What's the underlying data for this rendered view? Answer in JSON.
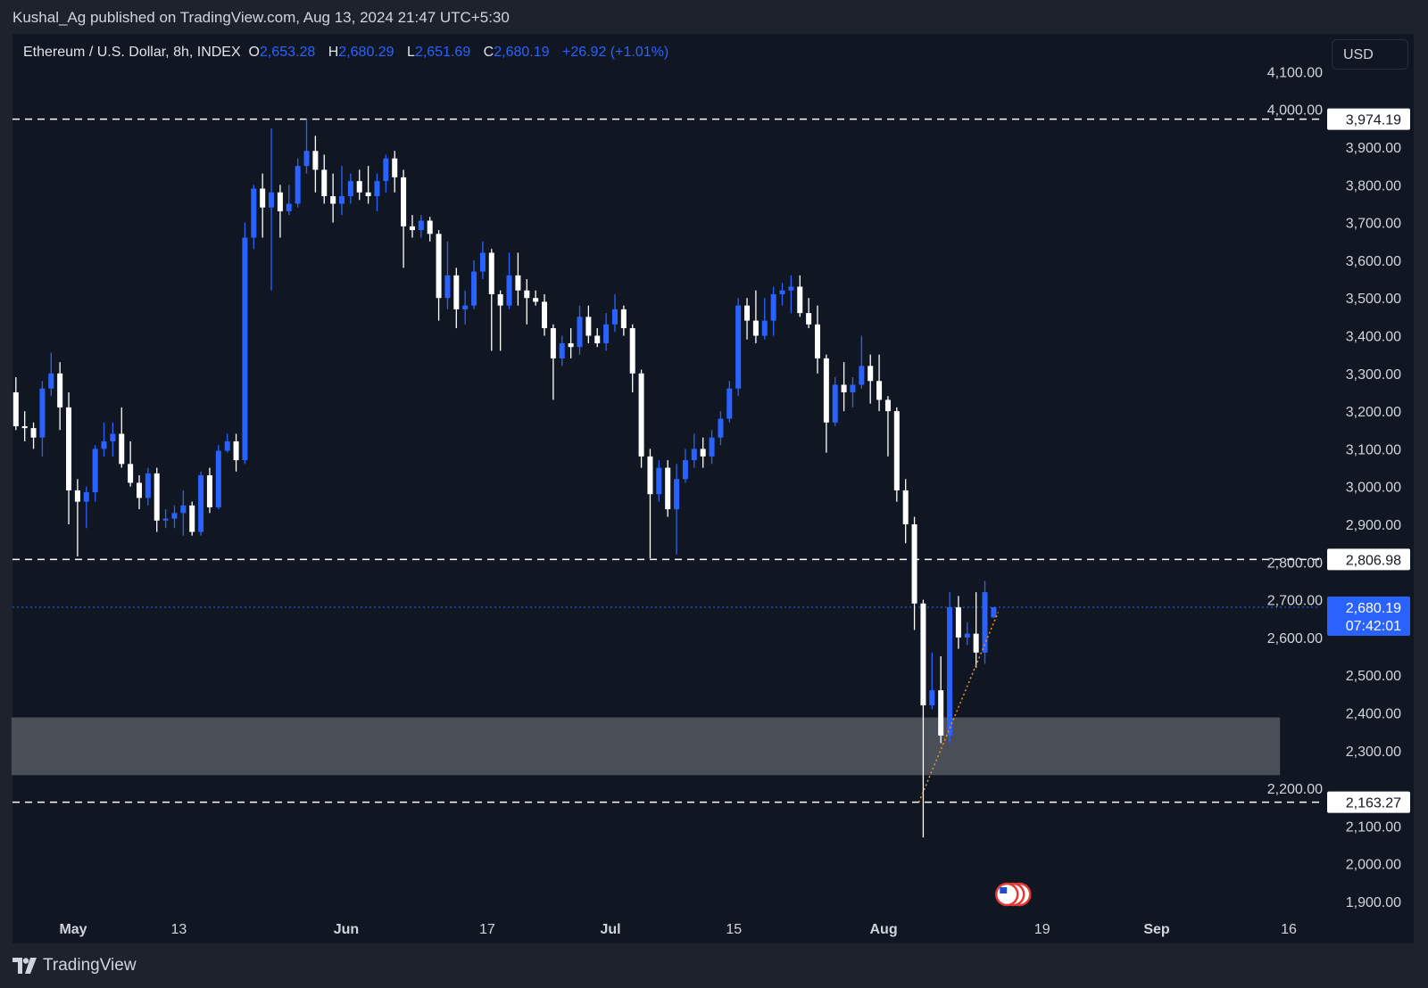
{
  "publisher_line": "Kushal_Ag published on TradingView.com, Aug 13, 2024 21:47 UTC+5:30",
  "legend": {
    "symbol": "Ethereum / U.S. Dollar, 8h, INDEX",
    "open_label": "O",
    "open": "2,653.28",
    "high_label": "H",
    "high": "2,680.29",
    "low_label": "L",
    "low": "2,651.69",
    "close_label": "C",
    "close": "2,680.19",
    "change": "+26.92 (+1.01%)"
  },
  "currency_button": "USD",
  "footer": {
    "brand": "TradingView",
    "logo_icon": "tradingview-logo-icon"
  },
  "colors": {
    "up": "#2962ff",
    "down": "#ffffff",
    "background": "#111722",
    "zone": "#4a4e57",
    "trendline": "#f7931a",
    "last_price": "#2962ff"
  },
  "chart_data": {
    "type": "candlestick",
    "symbol": "ETHUSD",
    "interval": "8h",
    "y_axis_ticks": [
      "1,900.00",
      "2,000.00",
      "2,100.00",
      "2,200.00",
      "2,300.00",
      "2,400.00",
      "2,500.00",
      "2,600.00",
      "2,700.00",
      "2,800.00",
      "2,900.00",
      "3,000.00",
      "3,100.00",
      "3,200.00",
      "3,300.00",
      "3,400.00",
      "3,500.00",
      "3,600.00",
      "3,700.00",
      "3,800.00",
      "3,900.00",
      "4,000.00",
      "4,100.00"
    ],
    "y_tick_values": [
      1900,
      2000,
      2100,
      2200,
      2300,
      2400,
      2500,
      2600,
      2700,
      2800,
      2900,
      3000,
      3100,
      3200,
      3300,
      3400,
      3500,
      3600,
      3700,
      3800,
      3900,
      4000,
      4100
    ],
    "x_axis_ticks": [
      {
        "label": "May",
        "date": "2024-05-01"
      },
      {
        "label": "13",
        "date": "2024-05-13"
      },
      {
        "label": "Jun",
        "date": "2024-06-01"
      },
      {
        "label": "17",
        "date": "2024-06-17"
      },
      {
        "label": "Jul",
        "date": "2024-07-01"
      },
      {
        "label": "15",
        "date": "2024-07-15"
      },
      {
        "label": "Aug",
        "date": "2024-08-01"
      },
      {
        "label": "19",
        "date": "2024-08-19"
      },
      {
        "label": "Sep",
        "date": "2024-09-01"
      },
      {
        "label": "16",
        "date": "2024-09-16"
      }
    ],
    "horizontal_levels": [
      {
        "value": 3974.19,
        "label": "3,974.19"
      },
      {
        "value": 2806.98,
        "label": "2,806.98"
      },
      {
        "value": 2163.27,
        "label": "2,163.27"
      }
    ],
    "zone": {
      "low": 2235,
      "high": 2388,
      "from": "2024-04-24",
      "to": "2024-09-15"
    },
    "trendline": {
      "from": {
        "date": "2024-08-05",
        "price": 2163
      },
      "to": {
        "date": "2024-08-14",
        "price": 2667
      }
    },
    "last_price": {
      "value": 2680.19,
      "label": "2,680.19",
      "countdown": "07:42:01"
    },
    "events": {
      "date": "2024-08-15",
      "icon": "us-flag-economic-event-icon",
      "count": 3
    },
    "candles_columns": [
      "date",
      "open",
      "high",
      "low",
      "close"
    ],
    "candles": [
      [
        "2024-04-24",
        3250,
        3290,
        3150,
        3160
      ],
      [
        "2024-04-25",
        3160,
        3200,
        3120,
        3155
      ],
      [
        "2024-04-26",
        3155,
        3170,
        3100,
        3130
      ],
      [
        "2024-04-27",
        3130,
        3280,
        3080,
        3260
      ],
      [
        "2024-04-28",
        3260,
        3355,
        3240,
        3300
      ],
      [
        "2024-04-29",
        3300,
        3330,
        3150,
        3210
      ],
      [
        "2024-04-30",
        3210,
        3250,
        2900,
        2990
      ],
      [
        "2024-05-01",
        2990,
        3020,
        2815,
        2960
      ],
      [
        "2024-05-02",
        2960,
        3000,
        2890,
        2985
      ],
      [
        "2024-05-03",
        2985,
        3110,
        2960,
        3100
      ],
      [
        "2024-05-04",
        3100,
        3170,
        3080,
        3120
      ],
      [
        "2024-05-05",
        3120,
        3170,
        3080,
        3140
      ],
      [
        "2024-05-06",
        3140,
        3210,
        3050,
        3060
      ],
      [
        "2024-05-07",
        3060,
        3120,
        3000,
        3010
      ],
      [
        "2024-05-08",
        3010,
        3030,
        2940,
        2970
      ],
      [
        "2024-05-09",
        2970,
        3050,
        2950,
        3035
      ],
      [
        "2024-05-10",
        3035,
        3050,
        2880,
        2910
      ],
      [
        "2024-05-11",
        2910,
        2940,
        2890,
        2915
      ],
      [
        "2024-05-12",
        2915,
        2950,
        2890,
        2930
      ],
      [
        "2024-05-13",
        2930,
        2990,
        2870,
        2950
      ],
      [
        "2024-05-14",
        2950,
        2960,
        2870,
        2880
      ],
      [
        "2024-05-15",
        2880,
        3040,
        2870,
        3030
      ],
      [
        "2024-05-16",
        3030,
        3050,
        2930,
        2945
      ],
      [
        "2024-05-17",
        2945,
        3110,
        2940,
        3095
      ],
      [
        "2024-05-18",
        3095,
        3140,
        3090,
        3120
      ],
      [
        "2024-05-19",
        3120,
        3140,
        3040,
        3070
      ],
      [
        "2024-05-20",
        3070,
        3700,
        3060,
        3660
      ],
      [
        "2024-05-21",
        3660,
        3800,
        3630,
        3790
      ],
      [
        "2024-05-22",
        3790,
        3830,
        3660,
        3740
      ],
      [
        "2024-05-23",
        3740,
        3950,
        3520,
        3780
      ],
      [
        "2024-05-24",
        3780,
        3800,
        3660,
        3730
      ],
      [
        "2024-05-25",
        3730,
        3800,
        3720,
        3750
      ],
      [
        "2024-05-26",
        3750,
        3870,
        3740,
        3850
      ],
      [
        "2024-05-27",
        3850,
        3975,
        3830,
        3890
      ],
      [
        "2024-05-28",
        3890,
        3930,
        3780,
        3840
      ],
      [
        "2024-05-29",
        3840,
        3880,
        3750,
        3770
      ],
      [
        "2024-05-30",
        3770,
        3830,
        3700,
        3750
      ],
      [
        "2024-05-31",
        3750,
        3850,
        3720,
        3770
      ],
      [
        "2024-06-01",
        3770,
        3830,
        3750,
        3810
      ],
      [
        "2024-06-02",
        3810,
        3840,
        3760,
        3780
      ],
      [
        "2024-06-03",
        3780,
        3850,
        3750,
        3770
      ],
      [
        "2024-06-04",
        3770,
        3830,
        3730,
        3810
      ],
      [
        "2024-06-05",
        3810,
        3880,
        3780,
        3870
      ],
      [
        "2024-06-06",
        3870,
        3890,
        3780,
        3820
      ],
      [
        "2024-06-07",
        3820,
        3840,
        3580,
        3690
      ],
      [
        "2024-06-08",
        3690,
        3720,
        3660,
        3680
      ],
      [
        "2024-06-09",
        3680,
        3720,
        3660,
        3705
      ],
      [
        "2024-06-10",
        3705,
        3715,
        3650,
        3670
      ],
      [
        "2024-06-11",
        3670,
        3680,
        3440,
        3500
      ],
      [
        "2024-06-12",
        3500,
        3650,
        3470,
        3560
      ],
      [
        "2024-06-13",
        3560,
        3580,
        3420,
        3470
      ],
      [
        "2024-06-14",
        3470,
        3520,
        3430,
        3480
      ],
      [
        "2024-06-15",
        3480,
        3600,
        3470,
        3570
      ],
      [
        "2024-06-16",
        3570,
        3650,
        3550,
        3620
      ],
      [
        "2024-06-17",
        3620,
        3630,
        3360,
        3510
      ],
      [
        "2024-06-18",
        3510,
        3520,
        3360,
        3480
      ],
      [
        "2024-06-19",
        3480,
        3620,
        3470,
        3560
      ],
      [
        "2024-06-20",
        3560,
        3620,
        3480,
        3520
      ],
      [
        "2024-06-21",
        3520,
        3550,
        3430,
        3500
      ],
      [
        "2024-06-22",
        3500,
        3520,
        3480,
        3490
      ],
      [
        "2024-06-23",
        3490,
        3510,
        3400,
        3420
      ],
      [
        "2024-06-24",
        3420,
        3430,
        3230,
        3340
      ],
      [
        "2024-06-25",
        3340,
        3400,
        3320,
        3380
      ],
      [
        "2024-06-26",
        3380,
        3420,
        3340,
        3370
      ],
      [
        "2024-06-27",
        3370,
        3480,
        3350,
        3450
      ],
      [
        "2024-06-28",
        3450,
        3480,
        3380,
        3400
      ],
      [
        "2024-06-29",
        3400,
        3420,
        3370,
        3380
      ],
      [
        "2024-06-30",
        3380,
        3460,
        3360,
        3430
      ],
      [
        "2024-07-01",
        3430,
        3510,
        3410,
        3470
      ],
      [
        "2024-07-02",
        3470,
        3480,
        3400,
        3420
      ],
      [
        "2024-07-03",
        3420,
        3430,
        3250,
        3300
      ],
      [
        "2024-07-04",
        3300,
        3310,
        3050,
        3080
      ],
      [
        "2024-07-05",
        3080,
        3100,
        2810,
        2980
      ],
      [
        "2024-07-06",
        2980,
        3070,
        2960,
        3050
      ],
      [
        "2024-07-07",
        3050,
        3070,
        2920,
        2940
      ],
      [
        "2024-07-08",
        2940,
        3060,
        2820,
        3020
      ],
      [
        "2024-07-09",
        3020,
        3100,
        3010,
        3070
      ],
      [
        "2024-07-10",
        3070,
        3140,
        3050,
        3100
      ],
      [
        "2024-07-11",
        3100,
        3130,
        3050,
        3080
      ],
      [
        "2024-07-12",
        3080,
        3150,
        3060,
        3130
      ],
      [
        "2024-07-13",
        3130,
        3200,
        3110,
        3180
      ],
      [
        "2024-07-14",
        3180,
        3280,
        3170,
        3260
      ],
      [
        "2024-07-15",
        3260,
        3500,
        3240,
        3480
      ],
      [
        "2024-07-16",
        3480,
        3500,
        3390,
        3440
      ],
      [
        "2024-07-17",
        3440,
        3520,
        3380,
        3400
      ],
      [
        "2024-07-18",
        3400,
        3500,
        3390,
        3440
      ],
      [
        "2024-07-19",
        3440,
        3530,
        3400,
        3510
      ],
      [
        "2024-07-20",
        3510,
        3540,
        3480,
        3520
      ],
      [
        "2024-07-21",
        3520,
        3560,
        3460,
        3530
      ],
      [
        "2024-07-22",
        3530,
        3560,
        3450,
        3460
      ],
      [
        "2024-07-23",
        3460,
        3500,
        3420,
        3430
      ],
      [
        "2024-07-24",
        3430,
        3480,
        3300,
        3340
      ],
      [
        "2024-07-25",
        3340,
        3350,
        3090,
        3170
      ],
      [
        "2024-07-26",
        3170,
        3290,
        3160,
        3270
      ],
      [
        "2024-07-27",
        3270,
        3330,
        3200,
        3250
      ],
      [
        "2024-07-28",
        3250,
        3290,
        3210,
        3270
      ],
      [
        "2024-07-29",
        3270,
        3400,
        3260,
        3320
      ],
      [
        "2024-07-30",
        3320,
        3350,
        3220,
        3280
      ],
      [
        "2024-07-31",
        3280,
        3350,
        3200,
        3230
      ],
      [
        "2024-08-01",
        3230,
        3240,
        3080,
        3200
      ],
      [
        "2024-08-02",
        3200,
        3210,
        2960,
        2990
      ],
      [
        "2024-08-03",
        2990,
        3020,
        2850,
        2900
      ],
      [
        "2024-08-04",
        2900,
        2920,
        2620,
        2690
      ],
      [
        "2024-08-05",
        2690,
        2700,
        2070,
        2420
      ],
      [
        "2024-08-06",
        2420,
        2560,
        2410,
        2460
      ],
      [
        "2024-08-07",
        2460,
        2550,
        2320,
        2340
      ],
      [
        "2024-08-08",
        2340,
        2720,
        2320,
        2680
      ],
      [
        "2024-08-09",
        2680,
        2710,
        2570,
        2600
      ],
      [
        "2024-08-10",
        2600,
        2640,
        2580,
        2610
      ],
      [
        "2024-08-11",
        2610,
        2720,
        2520,
        2560
      ],
      [
        "2024-08-12",
        2560,
        2750,
        2530,
        2720
      ],
      [
        "2024-08-13",
        2653.28,
        2680.29,
        2651.69,
        2680.19
      ]
    ]
  }
}
